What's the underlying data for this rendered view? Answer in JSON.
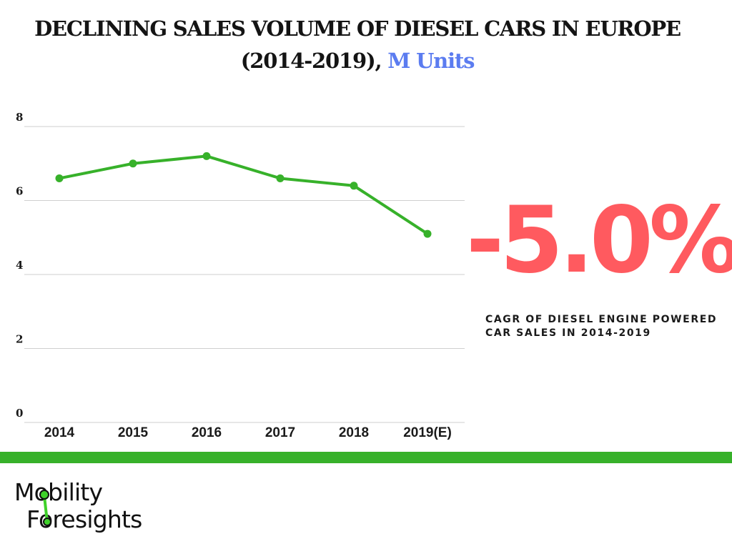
{
  "header": {
    "title_line1": "DECLINING SALES VOLUME OF DIESEL CARS IN EUROPE",
    "title_line2": "(2014-2019),",
    "title_unit": "M Units"
  },
  "highlight": {
    "value": "-5.0%",
    "caption_line1": "CAGR OF DIESEL ENGINE POWERED",
    "caption_line2": "CAR SALES IN 2014-2019"
  },
  "logo": {
    "line1": "Mobility",
    "line2": "Foresights"
  },
  "colors": {
    "line": "#37b12a",
    "accent_text": "#5b7cf0",
    "highlight": "#ff5a5f",
    "band": "#37b12a"
  },
  "chart_data": {
    "type": "line",
    "title": "DECLINING SALES VOLUME OF DIESEL CARS IN EUROPE (2014-2019), M Units",
    "xlabel": "",
    "ylabel": "",
    "categories": [
      "2014",
      "2015",
      "2016",
      "2017",
      "2018",
      "2019(E)"
    ],
    "series": [
      {
        "values": [
          6.6,
          7.0,
          7.2,
          6.6,
          6.4,
          5.1
        ]
      }
    ],
    "ylim": [
      0,
      8
    ],
    "yticks": [
      "0",
      "2",
      "4",
      "6",
      "8"
    ],
    "grid": true,
    "legend": "none"
  }
}
